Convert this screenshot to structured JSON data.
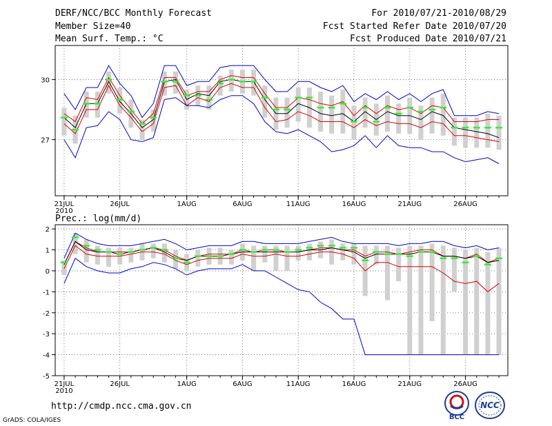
{
  "header": {
    "title": "DERF/NCC/BCC Monthly Forecast",
    "member_size": "Member Size=40",
    "variable": "Mean Surf. Temp.: °C",
    "forecast_period": "For 2010/07/21-2010/08/29",
    "fcst_started": "Fcst Started Refer Date 2010/07/20",
    "fcst_produced": "Fcst Produced Date 2010/07/21"
  },
  "footer": {
    "url": "http://cmdp.ncc.cma.gov.cn",
    "grads": "GrADS: COLA/IGES",
    "logo_bcc": "BCC",
    "logo_ncc": "NCC"
  },
  "colors": {
    "spread_bar": "#d0d0d0",
    "mode_dash": "#33ee33",
    "envelope": "#0000cc",
    "mean_band": "#dd0000",
    "ensemble_mean": "#000000"
  },
  "chart_data": [
    {
      "type": "line",
      "name": "temperature",
      "title": "",
      "ylabel": "",
      "ylim": [
        24.2,
        31.7
      ],
      "yticks": [
        27,
        30
      ],
      "ytick_labels": [
        "27",
        "30"
      ],
      "xticks": [
        0,
        5,
        11,
        16,
        21,
        26,
        31,
        36
      ],
      "xtick_labels": [
        "21JUL",
        "26JUL",
        "1AUG",
        "6AUG",
        "11AUG",
        "16AUG",
        "21AUG",
        "26AUG"
      ],
      "xtick_sub": "2010",
      "x": [
        0,
        1,
        2,
        3,
        4,
        5,
        6,
        7,
        8,
        9,
        10,
        11,
        12,
        13,
        14,
        15,
        16,
        17,
        18,
        19,
        20,
        21,
        22,
        23,
        24,
        25,
        26,
        27,
        28,
        29,
        30,
        31,
        32,
        33,
        34,
        35,
        36,
        37,
        38,
        39
      ],
      "series": [
        {
          "name": "max",
          "values": [
            29.3,
            28.5,
            29.6,
            29.6,
            30.7,
            29.8,
            29.2,
            28.1,
            28.8,
            30.7,
            30.7,
            29.7,
            29.9,
            29.9,
            30.6,
            30.7,
            30.7,
            30.7,
            30.0,
            29.4,
            29.4,
            29.9,
            29.9,
            29.6,
            29.4,
            29.7,
            28.9,
            29.3,
            29.0,
            29.4,
            29.0,
            29.3,
            28.9,
            29.3,
            29.5,
            28.2,
            28.2,
            28.2,
            28.4,
            28.3
          ]
        },
        {
          "name": "upper",
          "values": [
            28.3,
            27.9,
            29.1,
            29.0,
            30.1,
            29.2,
            28.5,
            27.8,
            28.3,
            30.1,
            30.1,
            29.2,
            29.4,
            29.4,
            30.0,
            30.2,
            30.1,
            30.1,
            29.3,
            28.6,
            28.6,
            29.1,
            29.0,
            28.8,
            28.7,
            28.9,
            28.2,
            28.7,
            28.3,
            28.7,
            28.5,
            28.6,
            28.3,
            28.7,
            28.6,
            27.9,
            27.9,
            27.9,
            28.0,
            28.0
          ]
        },
        {
          "name": "mean",
          "values": [
            28.1,
            27.6,
            28.8,
            28.8,
            29.9,
            28.9,
            28.3,
            27.6,
            28.0,
            29.9,
            30.0,
            29.0,
            29.3,
            29.2,
            29.9,
            30.0,
            29.9,
            29.9,
            29.0,
            28.3,
            28.3,
            28.8,
            28.6,
            28.3,
            28.2,
            28.3,
            27.9,
            28.4,
            28.0,
            28.4,
            28.2,
            28.2,
            28.0,
            28.4,
            28.2,
            27.6,
            27.5,
            27.4,
            27.3,
            27.1
          ]
        },
        {
          "name": "lower",
          "values": [
            27.8,
            27.3,
            28.5,
            28.5,
            29.7,
            28.7,
            28.1,
            27.4,
            27.8,
            29.6,
            29.7,
            28.7,
            29.1,
            28.9,
            29.6,
            29.8,
            29.6,
            29.6,
            28.6,
            27.9,
            28.0,
            28.4,
            28.2,
            27.9,
            27.9,
            27.9,
            27.6,
            28.0,
            27.7,
            27.9,
            27.8,
            27.8,
            27.6,
            27.9,
            27.8,
            27.2,
            27.2,
            27.1,
            27.0,
            26.9
          ]
        },
        {
          "name": "min",
          "values": [
            27.0,
            26.1,
            27.6,
            27.7,
            28.4,
            28.0,
            27.0,
            26.9,
            27.1,
            29.0,
            29.1,
            28.7,
            28.7,
            28.6,
            29.0,
            29.2,
            29.2,
            28.8,
            27.9,
            27.4,
            27.3,
            27.5,
            27.2,
            26.9,
            26.4,
            26.5,
            26.7,
            27.2,
            26.6,
            27.2,
            26.7,
            26.6,
            26.6,
            26.4,
            26.4,
            26.1,
            25.9,
            26.0,
            26.1,
            25.8
          ]
        }
      ],
      "spread_low": [
        27.2,
        26.8,
        28.1,
        28.1,
        29.3,
        28.3,
        27.6,
        27.0,
        27.4,
        29.2,
        29.3,
        28.5,
        28.7,
        28.5,
        29.2,
        29.4,
        29.3,
        29.2,
        28.1,
        27.5,
        27.6,
        27.9,
        27.6,
        27.4,
        27.3,
        27.3,
        27.0,
        27.6,
        27.2,
        27.4,
        27.3,
        27.3,
        27.0,
        27.3,
        27.2,
        26.7,
        26.6,
        26.6,
        26.6,
        26.5
      ],
      "spread_high": [
        28.6,
        28.2,
        29.4,
        29.4,
        30.4,
        29.6,
        29.0,
        28.0,
        28.5,
        30.4,
        30.4,
        29.5,
        29.7,
        29.7,
        30.2,
        30.5,
        30.5,
        30.5,
        29.7,
        29.1,
        29.1,
        29.6,
        29.6,
        29.4,
        29.2,
        29.5,
        28.7,
        29.1,
        28.8,
        29.2,
        28.8,
        29.1,
        28.7,
        29.1,
        29.3,
        28.1,
        28.1,
        28.1,
        28.3,
        28.2
      ],
      "mode": [
        28.1,
        27.5,
        28.8,
        28.8,
        30.0,
        29.0,
        28.4,
        27.8,
        28.1,
        29.9,
        29.9,
        29.2,
        29.2,
        29.0,
        29.8,
        30.0,
        29.9,
        29.9,
        29.1,
        28.5,
        28.5,
        29.1,
        29.1,
        28.6,
        28.6,
        28.8,
        27.9,
        28.6,
        27.9,
        28.6,
        28.3,
        28.6,
        28.4,
        28.5,
        28.6,
        27.6,
        27.6,
        27.6,
        27.6,
        27.6
      ]
    },
    {
      "type": "line",
      "name": "precipitation",
      "title": "Prec.: log(mm/d)",
      "ylim": [
        -5,
        2.2
      ],
      "yticks": [
        2,
        1,
        0,
        -1,
        -2,
        -3,
        -4,
        -5
      ],
      "ytick_labels": [
        "2",
        "1",
        "0",
        "-1",
        "-2",
        "-3",
        "-4",
        "-5"
      ],
      "xticks": [
        0,
        5,
        11,
        16,
        21,
        26,
        31,
        36
      ],
      "xtick_labels": [
        "21JUL",
        "26JUL",
        "1AUG",
        "6AUG",
        "11AUG",
        "16AUG",
        "21AUG",
        "26AUG"
      ],
      "xtick_sub": "2010",
      "x": [
        0,
        1,
        2,
        3,
        4,
        5,
        6,
        7,
        8,
        9,
        10,
        11,
        12,
        13,
        14,
        15,
        16,
        17,
        18,
        19,
        20,
        21,
        22,
        23,
        24,
        25,
        26,
        27,
        28,
        29,
        30,
        31,
        32,
        33,
        34,
        35,
        36,
        37,
        38,
        39
      ],
      "series": [
        {
          "name": "max",
          "values": [
            0.6,
            1.8,
            1.5,
            1.3,
            1.2,
            1.2,
            1.2,
            1.3,
            1.4,
            1.5,
            1.3,
            1.0,
            1.1,
            1.2,
            1.2,
            1.2,
            1.4,
            1.4,
            1.3,
            1.3,
            1.3,
            1.3,
            1.4,
            1.5,
            1.6,
            1.4,
            1.3,
            1.3,
            1.3,
            1.3,
            1.2,
            1.3,
            1.3,
            1.4,
            1.4,
            1.2,
            1.1,
            1.2,
            1.0,
            1.1
          ]
        },
        {
          "name": "upper",
          "values": [
            0.3,
            1.4,
            1.1,
            0.9,
            0.9,
            0.9,
            0.9,
            1.0,
            1.1,
            1.0,
            0.7,
            0.5,
            0.7,
            0.8,
            0.8,
            0.8,
            1.0,
            0.9,
            1.0,
            1.0,
            0.9,
            0.9,
            1.0,
            1.1,
            1.1,
            1.0,
            1.0,
            0.7,
            0.9,
            0.9,
            0.8,
            0.9,
            1.0,
            1.0,
            0.7,
            0.7,
            0.6,
            0.8,
            0.4,
            0.6
          ]
        },
        {
          "name": "mean",
          "values": [
            0.3,
            1.4,
            1.0,
            0.9,
            0.9,
            0.8,
            0.9,
            1.0,
            1.1,
            0.9,
            0.6,
            0.5,
            0.7,
            0.7,
            0.7,
            0.8,
            0.9,
            0.9,
            0.9,
            0.9,
            0.9,
            0.9,
            1.0,
            1.0,
            1.1,
            1.0,
            0.9,
            0.6,
            0.8,
            0.8,
            0.8,
            0.8,
            0.9,
            0.9,
            0.7,
            0.7,
            0.6,
            0.7,
            0.4,
            0.5
          ]
        },
        {
          "name": "lower",
          "values": [
            0.1,
            1.2,
            0.8,
            0.7,
            0.7,
            0.7,
            0.8,
            0.9,
            0.9,
            0.8,
            0.5,
            0.3,
            0.5,
            0.6,
            0.6,
            0.6,
            0.8,
            0.7,
            0.7,
            0.8,
            0.7,
            0.7,
            0.8,
            0.9,
            0.9,
            0.8,
            0.6,
            0.0,
            0.4,
            0.4,
            0.2,
            0.2,
            0.2,
            0.2,
            -0.1,
            -0.5,
            -0.6,
            -0.5,
            -1.0,
            -0.6
          ]
        },
        {
          "name": "min",
          "values": [
            -0.6,
            0.6,
            0.2,
            0.0,
            -0.1,
            -0.1,
            0.1,
            0.2,
            0.4,
            0.3,
            0.1,
            -0.2,
            0.0,
            0.1,
            0.1,
            0.1,
            0.3,
            0.0,
            0.0,
            -0.3,
            -0.6,
            -0.9,
            -1.0,
            -1.5,
            -1.8,
            -2.3,
            -2.3,
            -4.0,
            -4.0,
            -4.0,
            -4.0,
            -4.0,
            -4.0,
            -4.0,
            -4.0,
            -4.0,
            -4.0,
            -4.0,
            -4.0,
            -4.0
          ]
        }
      ],
      "spread_low": [
        -0.2,
        0.8,
        0.4,
        0.3,
        0.2,
        0.3,
        0.4,
        0.5,
        0.6,
        0.4,
        0.1,
        0.0,
        0.2,
        0.3,
        0.3,
        0.3,
        0.5,
        0.0,
        0.4,
        0.0,
        0.0,
        0.5,
        0.5,
        0.6,
        0.3,
        0.5,
        0.3,
        -1.2,
        0.3,
        -1.4,
        -0.5,
        -4.0,
        -4.0,
        -2.4,
        -4.0,
        -1.0,
        -4.0,
        -4.0,
        -4.0,
        -4.0
      ],
      "spread_high": [
        0.5,
        1.8,
        1.5,
        1.2,
        1.1,
        1.1,
        1.1,
        1.3,
        1.3,
        1.3,
        1.0,
        0.8,
        1.0,
        1.1,
        1.1,
        1.0,
        1.3,
        1.2,
        1.2,
        1.2,
        1.2,
        1.2,
        1.3,
        1.4,
        1.5,
        1.3,
        1.3,
        1.2,
        1.2,
        1.2,
        1.1,
        1.2,
        1.2,
        1.3,
        1.2,
        1.1,
        1.0,
        1.1,
        0.9,
        1.1
      ],
      "mode": [
        0.4,
        1.6,
        1.2,
        1.0,
        0.9,
        0.8,
        0.9,
        1.0,
        1.1,
        1.0,
        0.6,
        0.4,
        0.7,
        0.7,
        0.7,
        0.8,
        1.0,
        0.9,
        1.0,
        1.0,
        0.9,
        1.0,
        1.1,
        1.2,
        1.2,
        1.1,
        1.1,
        0.5,
        0.9,
        0.8,
        0.8,
        0.7,
        0.9,
        0.9,
        0.6,
        0.6,
        0.4,
        0.7,
        0.3,
        0.6
      ]
    }
  ]
}
